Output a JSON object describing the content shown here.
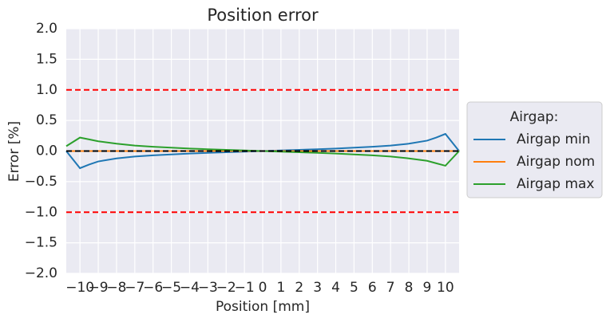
{
  "chart_data": {
    "type": "line",
    "title": "Position error",
    "x_label": "Position [mm]",
    "y_label": "Error [%]",
    "x": [
      -10.75,
      -10,
      -9.5,
      -9,
      -8,
      -7,
      -6,
      -5,
      -4,
      -3,
      -2,
      -1,
      0,
      1,
      2,
      3,
      4,
      5,
      6,
      7,
      8,
      9,
      9.5,
      10,
      10.75
    ],
    "series": [
      {
        "name": "Airgap min",
        "color": "#1f77b4",
        "values": [
          0,
          -0.28,
          -0.22,
          -0.17,
          -0.12,
          -0.09,
          -0.07,
          -0.055,
          -0.04,
          -0.03,
          -0.02,
          -0.01,
          0,
          0.01,
          0.02,
          0.03,
          0.04,
          0.055,
          0.07,
          0.09,
          0.12,
          0.17,
          0.22,
          0.28,
          0
        ]
      },
      {
        "name": "Airgap nom",
        "color": "#ff7f0e",
        "values": [
          0,
          0,
          0,
          0,
          0,
          0,
          0,
          0,
          0,
          0,
          0,
          0,
          0,
          0,
          0,
          0,
          0,
          0,
          0,
          0,
          0,
          0,
          0,
          0,
          0
        ]
      },
      {
        "name": "Airgap max",
        "color": "#2ca02c",
        "values": [
          0.08,
          0.22,
          0.19,
          0.16,
          0.12,
          0.09,
          0.07,
          0.055,
          0.04,
          0.03,
          0.02,
          0.01,
          0,
          -0.01,
          -0.02,
          -0.03,
          -0.04,
          -0.055,
          -0.07,
          -0.09,
          -0.12,
          -0.16,
          -0.2,
          -0.24,
          0
        ]
      }
    ],
    "hlines": [
      {
        "y": 1,
        "color": "#ff0000"
      },
      {
        "y": -1,
        "color": "#ff0000"
      },
      {
        "y": 0,
        "color": "#000000"
      }
    ],
    "legend_title": "Airgap:",
    "legend_position": "outside-right",
    "grid": true,
    "xlim": [
      -10.75,
      10.75
    ],
    "ylim": [
      -2,
      2
    ],
    "xticks": [
      {
        "value": -10,
        "label": "−10"
      },
      {
        "value": -9,
        "label": "−9"
      },
      {
        "value": -8,
        "label": "−8"
      },
      {
        "value": -7,
        "label": "−7"
      },
      {
        "value": -6,
        "label": "−6"
      },
      {
        "value": -5,
        "label": "−5"
      },
      {
        "value": -4,
        "label": "−4"
      },
      {
        "value": -3,
        "label": "−3"
      },
      {
        "value": -2,
        "label": "−2"
      },
      {
        "value": -1,
        "label": "−1"
      },
      0,
      1,
      2,
      3,
      4,
      5,
      6,
      7,
      8,
      9,
      10
    ],
    "yticks": [
      {
        "value": -2,
        "label": "−2.0"
      },
      {
        "value": -1.5,
        "label": "−1.5"
      },
      {
        "value": -1,
        "label": "−1.0"
      },
      {
        "value": -0.5,
        "label": "−0.5"
      },
      {
        "value": 0,
        "label": "0.0"
      },
      {
        "value": 0.5,
        "label": "0.5"
      },
      {
        "value": 1,
        "label": "1.0"
      },
      {
        "value": 1.5,
        "label": "1.5"
      },
      {
        "value": 2,
        "label": "2.0"
      }
    ]
  }
}
